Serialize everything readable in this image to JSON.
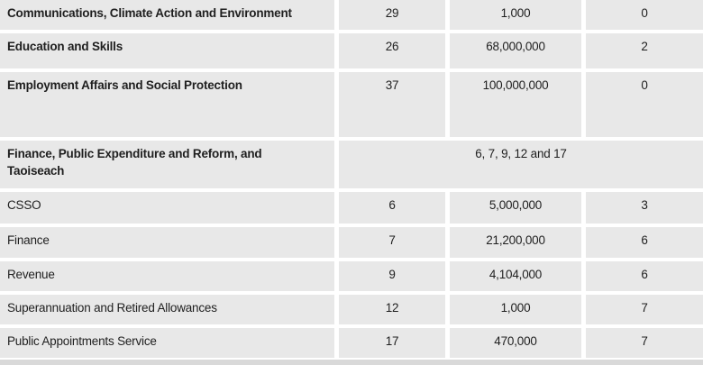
{
  "colors": {
    "cell_background": "#e8e8e8",
    "row_gap": "#ffffff",
    "text": "#1f1f1f",
    "bottom_strip": "#d9d9d9"
  },
  "table": {
    "rows": [
      {
        "department": "Communications, Climate Action and Environment",
        "vote": "29",
        "amount": "1,000",
        "count": "0"
      },
      {
        "department": "Education and Skills",
        "vote": "26",
        "amount": "68,000,000",
        "count": "2"
      },
      {
        "department": "Employment Affairs and Social Protection",
        "vote": "37",
        "amount": "100,000,000",
        "count": "0"
      },
      {
        "department": "Finance, Public Expenditure and Reform, and Taoiseach",
        "merged_votes": "6, 7, 9, 12 and 17"
      },
      {
        "department": "CSSO",
        "vote": "6",
        "amount": "5,000,000",
        "count": "3"
      },
      {
        "department": "Finance",
        "vote": "7",
        "amount": "21,200,000",
        "count": "6"
      },
      {
        "department": "Revenue",
        "vote": "9",
        "amount": "4,104,000",
        "count": "6"
      },
      {
        "department": "Superannuation and Retired Allowances",
        "vote": "12",
        "amount": "1,000",
        "count": "7"
      },
      {
        "department": "Public Appointments Service",
        "vote": "17",
        "amount": "470,000",
        "count": "7"
      }
    ]
  }
}
